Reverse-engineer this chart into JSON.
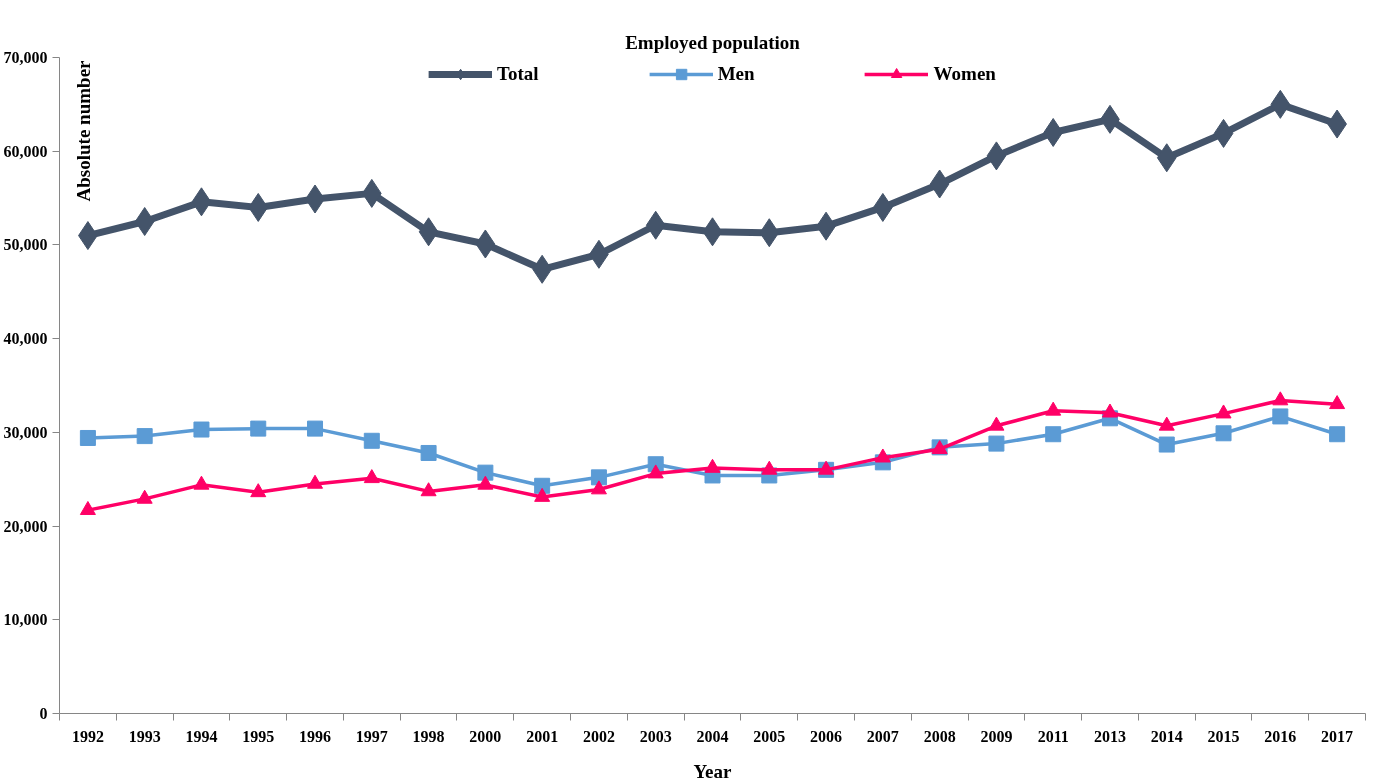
{
  "chart_data": {
    "type": "line",
    "title": "Employed population",
    "xlabel": "Year",
    "ylabel": "Absolute number",
    "categories": [
      "1992",
      "1993",
      "1994",
      "1995",
      "1996",
      "1997",
      "1998",
      "2000",
      "2001",
      "2002",
      "2003",
      "2004",
      "2005",
      "2006",
      "2007",
      "2008",
      "2009",
      "2011",
      "2013",
      "2014",
      "2015",
      "2016",
      "2017"
    ],
    "ylim": [
      0,
      70000
    ],
    "yticks": [
      0,
      {
        "value": 10000,
        "label": "10,000"
      },
      {
        "value": 20000,
        "label": "20,000"
      },
      {
        "value": 30000,
        "label": "30,000"
      },
      {
        "value": 40000,
        "label": "40,000"
      },
      {
        "value": 50000,
        "label": "50,000"
      },
      {
        "value": 60000,
        "label": "60,000"
      },
      {
        "value": 70000,
        "label": "70,000"
      }
    ],
    "grid": false,
    "legend": "top",
    "line_style": "solid",
    "series": [
      {
        "name": "Total",
        "color": "#44546a",
        "marker": "diamond",
        "values": [
          51000,
          52500,
          54600,
          54000,
          54900,
          55500,
          51400,
          50100,
          47400,
          49000,
          52100,
          51400,
          51300,
          52000,
          54000,
          56500,
          59500,
          62000,
          63400,
          59300,
          61900,
          65000,
          62900
        ]
      },
      {
        "name": "Men",
        "color": "#5b9bd5",
        "marker": "square",
        "values": [
          29400,
          29600,
          30300,
          30400,
          30400,
          29100,
          27800,
          25700,
          24300,
          25200,
          26600,
          25400,
          25400,
          26000,
          26800,
          28400,
          28800,
          29800,
          31500,
          28700,
          29900,
          31700,
          29800
        ]
      },
      {
        "name": "Women",
        "color": "#ff0066",
        "marker": "triangle",
        "values": [
          21700,
          22900,
          24400,
          23600,
          24500,
          25100,
          23700,
          24400,
          23100,
          23900,
          25600,
          26200,
          26000,
          26000,
          27300,
          28200,
          30700,
          32300,
          32100,
          30700,
          32000,
          33400,
          33000
        ]
      }
    ]
  }
}
